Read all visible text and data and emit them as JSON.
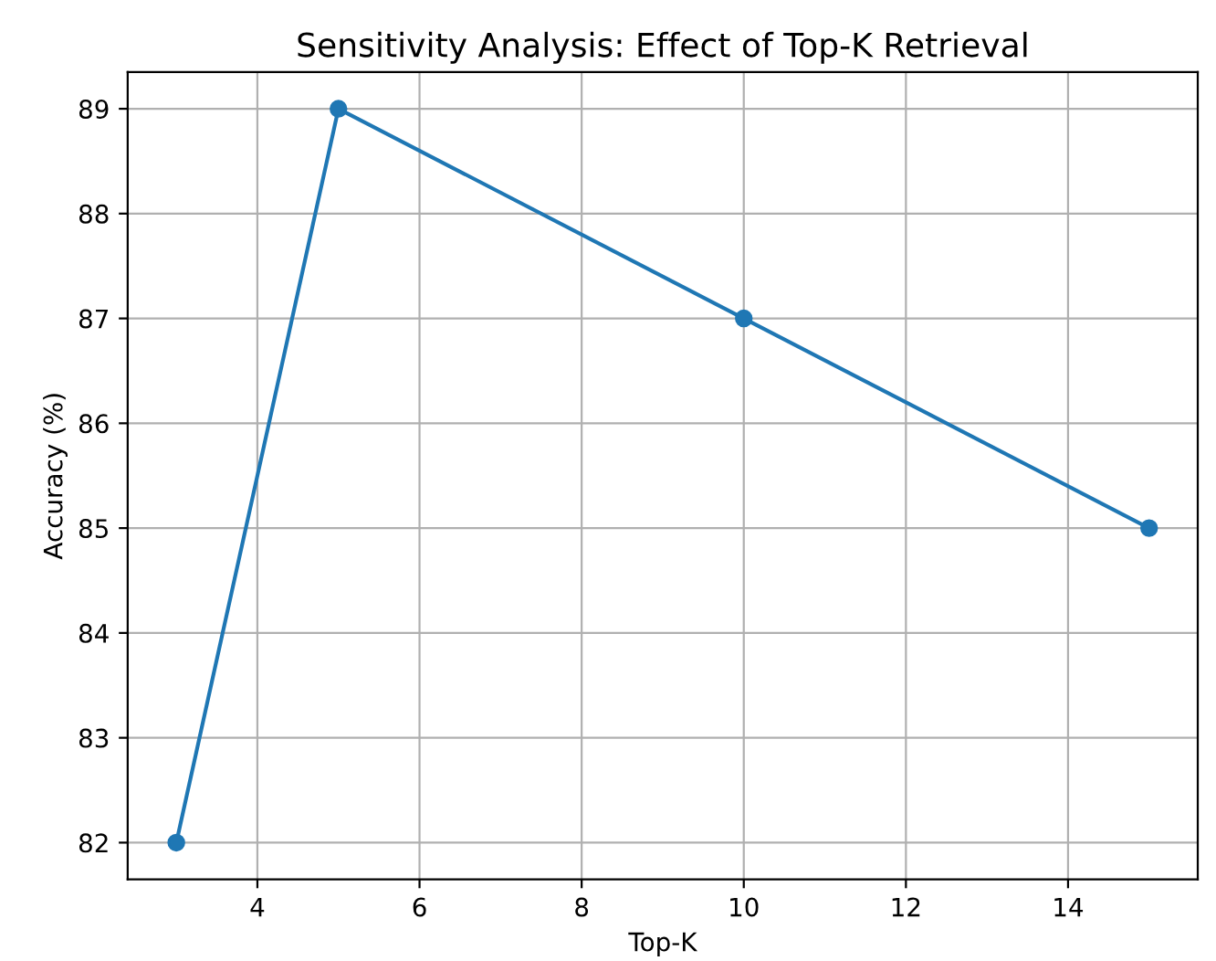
{
  "chart_data": {
    "type": "line",
    "title": "Sensitivity Analysis: Effect of Top-K Retrieval",
    "xlabel": "Top-K",
    "ylabel": "Accuracy (%)",
    "x": [
      3,
      5,
      10,
      15
    ],
    "series": [
      {
        "color": "#1f77b4",
        "values": [
          82,
          89,
          87,
          85
        ]
      }
    ],
    "xlim": [
      2.4,
      15.6
    ],
    "ylim": [
      81.65,
      89.35
    ],
    "xticks": [
      4,
      6,
      8,
      10,
      12,
      14
    ],
    "yticks": [
      82,
      83,
      84,
      85,
      86,
      87,
      88,
      89
    ],
    "grid": true,
    "marker": "circle",
    "line_style": "solid"
  }
}
